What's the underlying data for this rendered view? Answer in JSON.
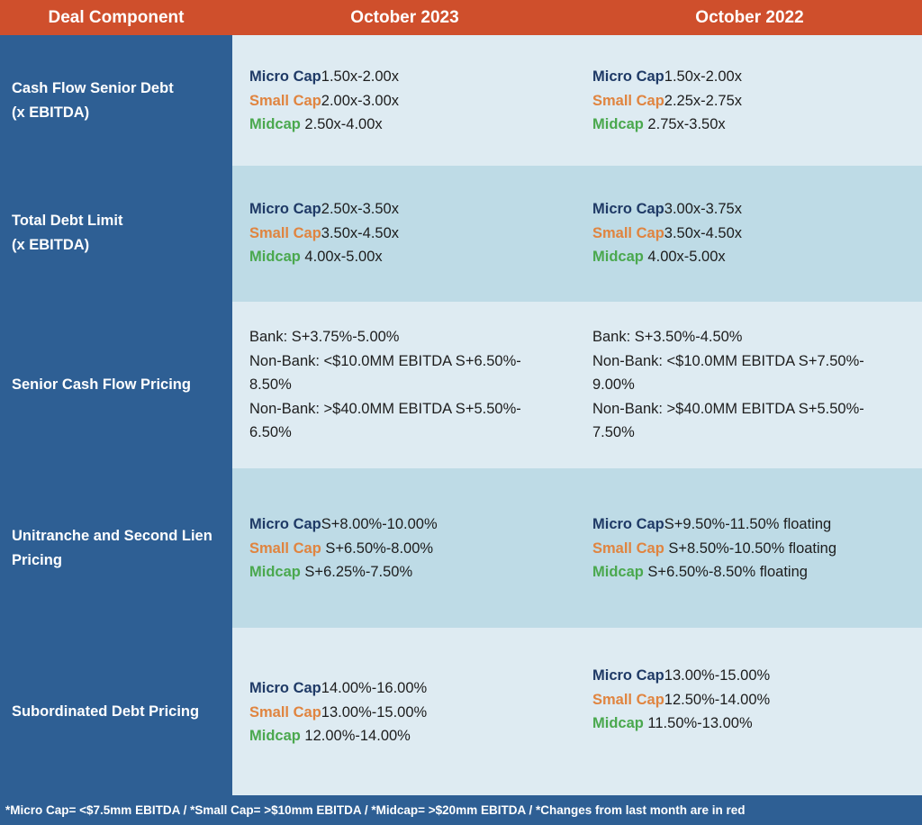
{
  "header": {
    "col1": "Deal Component",
    "col2": "October 2023",
    "col3": "October 2022"
  },
  "rows": [
    {
      "label_line1": "Cash Flow Senior Debt",
      "label_line2": "(x EBITDA)",
      "oct2023": [
        {
          "tier": "Micro Cap",
          "value": "1.50x-2.00x"
        },
        {
          "tier": "Small Cap",
          "value": "2.00x-3.00x"
        },
        {
          "tier": "Midcap",
          "value": " 2.50x-4.00x"
        }
      ],
      "oct2022": [
        {
          "tier": "Micro Cap",
          "value": "1.50x-2.00x"
        },
        {
          "tier": "Small Cap",
          "value": "2.25x-2.75x"
        },
        {
          "tier": "Midcap",
          "value": " 2.75x-3.50x"
        }
      ]
    },
    {
      "label_line1": "Total Debt Limit",
      "label_line2": "(x EBITDA)",
      "oct2023": [
        {
          "tier": "Micro Cap",
          "value": "2.50x-3.50x"
        },
        {
          "tier": "Small Cap",
          "value": "3.50x-4.50x"
        },
        {
          "tier": "Midcap",
          "value": " 4.00x-5.00x"
        }
      ],
      "oct2022": [
        {
          "tier": "Micro Cap",
          "value": "3.00x-3.75x"
        },
        {
          "tier": "Small Cap",
          "value": "3.50x-4.50x"
        },
        {
          "tier": "Midcap",
          "value": " 4.00x-5.00x"
        }
      ]
    },
    {
      "label_line1": "Senior Cash Flow Pricing",
      "oct2023_lines": [
        "Bank: S+3.75%-5.00%",
        "Non-Bank: <$10.0MM EBITDA S+6.50%-",
        "8.50%",
        "Non-Bank: >$40.0MM EBITDA S+5.50%-",
        "6.50%"
      ],
      "oct2022_lines": [
        "Bank: S+3.50%-4.50%",
        "Non-Bank: <$10.0MM EBITDA S+7.50%-",
        "9.00%",
        "Non-Bank: >$40.0MM EBITDA S+5.50%-",
        "7.50%"
      ]
    },
    {
      "label_line1": "Unitranche and Second Lien",
      "label_line2": "Pricing",
      "oct2023": [
        {
          "tier": "Micro Cap",
          "value": "S+8.00%-10.00%"
        },
        {
          "tier": "Small Cap",
          "value": " S+6.50%-8.00%"
        },
        {
          "tier": "Midcap",
          "value": " S+6.25%-7.50%"
        }
      ],
      "oct2022": [
        {
          "tier": "Micro Cap",
          "value": "S+9.50%-11.50% floating"
        },
        {
          "tier": "Small Cap",
          "value": " S+8.50%-10.50% floating"
        },
        {
          "tier": "Midcap",
          "value": " S+6.50%-8.50% floating"
        }
      ]
    },
    {
      "label_line1": "Subordinated Debt Pricing",
      "oct2023": [
        {
          "tier": "Micro Cap",
          "value": "14.00%-16.00%"
        },
        {
          "tier": "Small Cap",
          "value": "13.00%-15.00%"
        },
        {
          "tier": "Midcap",
          "value": " 12.00%-14.00%"
        }
      ],
      "oct2022": [
        {
          "tier": "Micro Cap",
          "value": "13.00%-15.00%"
        },
        {
          "tier": "Small Cap",
          "value": "12.50%-14.00%"
        },
        {
          "tier": "Midcap",
          "value": " 11.50%-13.00%"
        }
      ]
    }
  ],
  "footer": "*Micro Cap= <$7.5mm EBITDA / *Small Cap= >$10mm EBITDA / *Midcap= >$20mm EBITDA / *Changes from last month are in red",
  "colors": {
    "header_bg": "#cf4f2c",
    "label_col_bg": "#2e5f94",
    "row_light": "#deebf2",
    "row_dark": "#bedbe6",
    "micro_cap": "#1f3a66",
    "small_cap": "#e0843f",
    "midcap": "#4aa84e"
  }
}
